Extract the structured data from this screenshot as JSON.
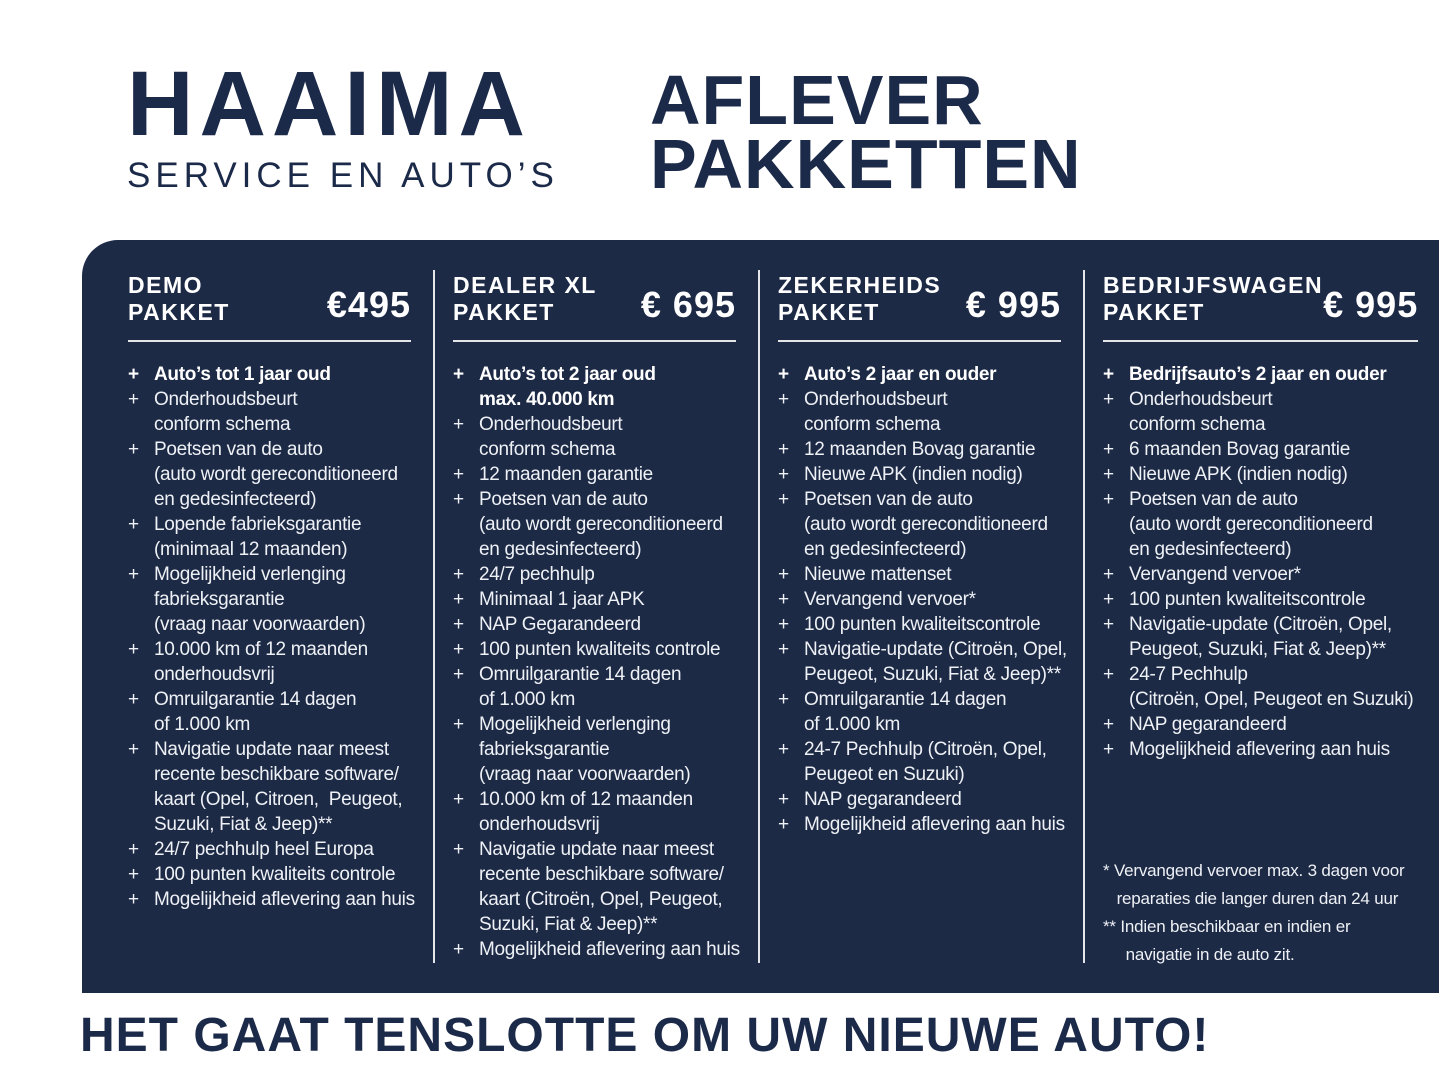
{
  "colors": {
    "panel_navy": "#1d2a46",
    "headline_navy": "#1c2a49",
    "feature_text": "#eef1f5",
    "line_white": "rgba(255,255,255,.88)"
  },
  "brand": {
    "name": "HAAIMA",
    "tagline": "SERVICE EN AUTO’S"
  },
  "title": {
    "line1": "AFLEVER",
    "line2": "PAKKETTEN"
  },
  "packages": [
    {
      "name": "DEMO\nPAKKET",
      "price": "€495",
      "features": [
        {
          "text": "Auto’s tot 1 jaar oud",
          "bold": true
        },
        {
          "text": "Onderhoudsbeurt\nconform schema",
          "bold": false
        },
        {
          "text": "Poetsen van de auto\n(auto wordt gereconditioneerd\nen gedesinfecteerd)",
          "bold": false
        },
        {
          "text": "Lopende fabrieksgarantie\n(minimaal 12 maanden)",
          "bold": false
        },
        {
          "text": "Mogelijkheid verlenging\nfabrieksgarantie\n(vraag naar voorwaarden)",
          "bold": false
        },
        {
          "text": "10.000 km of 12 maanden\nonderhoudsvrij",
          "bold": false
        },
        {
          "text": "Omruilgarantie 14 dagen\nof 1.000 km",
          "bold": false
        },
        {
          "text": "Navigatie update naar meest\nrecente beschikbare software/\nkaart (Opel, Citroen,  Peugeot,\nSuzuki, Fiat & Jeep)**",
          "bold": false
        },
        {
          "text": "24/7 pechhulp heel Europa",
          "bold": false
        },
        {
          "text": "100 punten kwaliteits controle",
          "bold": false
        },
        {
          "text": "Mogelijkheid aflevering aan huis",
          "bold": false
        }
      ]
    },
    {
      "name": "DEALER XL\nPAKKET",
      "price": "€ 695",
      "features": [
        {
          "text": "Auto’s tot 2 jaar oud\nmax. 40.000 km",
          "bold": true
        },
        {
          "text": "Onderhoudsbeurt\nconform schema",
          "bold": false
        },
        {
          "text": "12 maanden garantie",
          "bold": false
        },
        {
          "text": "Poetsen van de auto\n(auto wordt gereconditioneerd\nen gedesinfecteerd)",
          "bold": false
        },
        {
          "text": "24/7 pechhulp",
          "bold": false
        },
        {
          "text": "Minimaal 1 jaar APK",
          "bold": false
        },
        {
          "text": "NAP Gegarandeerd",
          "bold": false
        },
        {
          "text": "100 punten kwaliteits controle",
          "bold": false
        },
        {
          "text": "Omruilgarantie 14 dagen\nof 1.000 km",
          "bold": false
        },
        {
          "text": "Mogelijkheid verlenging\nfabrieksgarantie\n(vraag naar voorwaarden)",
          "bold": false
        },
        {
          "text": "10.000 km of 12 maanden\nonderhoudsvrij",
          "bold": false
        },
        {
          "text": "Navigatie update naar meest\nrecente beschikbare software/\nkaart (Citroën, Opel, Peugeot,\nSuzuki, Fiat & Jeep)**",
          "bold": false
        },
        {
          "text": "Mogelijkheid aflevering aan huis",
          "bold": false
        }
      ]
    },
    {
      "name": "ZEKERHEIDS\nPAKKET",
      "price": "€ 995",
      "features": [
        {
          "text": "Auto’s 2 jaar en ouder",
          "bold": true
        },
        {
          "text": "Onderhoudsbeurt\nconform schema",
          "bold": false
        },
        {
          "text": "12 maanden Bovag garantie",
          "bold": false
        },
        {
          "text": "Nieuwe APK (indien nodig)",
          "bold": false
        },
        {
          "text": "Poetsen van de auto\n(auto wordt gereconditioneerd\nen gedesinfecteerd)",
          "bold": false
        },
        {
          "text": "Nieuwe mattenset",
          "bold": false
        },
        {
          "text": "Vervangend vervoer*",
          "bold": false
        },
        {
          "text": "100 punten kwaliteitscontrole",
          "bold": false
        },
        {
          "text": "Navigatie-update (Citroën, Opel,\nPeugeot, Suzuki, Fiat & Jeep)**",
          "bold": false
        },
        {
          "text": "Omruilgarantie 14 dagen\nof 1.000 km",
          "bold": false
        },
        {
          "text": "24-7 Pechhulp (Citroën, Opel,\nPeugeot en Suzuki)",
          "bold": false
        },
        {
          "text": "NAP gegarandeerd",
          "bold": false
        },
        {
          "text": "Mogelijkheid aflevering aan huis",
          "bold": false
        }
      ]
    },
    {
      "name": "BEDRIJFSWAGEN\nPAKKET",
      "price": "€ 995",
      "features": [
        {
          "text": "Bedrijfsauto’s 2 jaar en ouder",
          "bold": true
        },
        {
          "text": "Onderhoudsbeurt\nconform schema",
          "bold": false
        },
        {
          "text": "6 maanden Bovag garantie",
          "bold": false
        },
        {
          "text": "Nieuwe APK (indien nodig)",
          "bold": false
        },
        {
          "text": "Poetsen van de auto\n(auto wordt gereconditioneerd\nen gedesinfecteerd)",
          "bold": false
        },
        {
          "text": "Vervangend vervoer*",
          "bold": false
        },
        {
          "text": "100 punten kwaliteitscontrole",
          "bold": false
        },
        {
          "text": "Navigatie-update (Citroën, Opel,\nPeugeot, Suzuki, Fiat & Jeep)**",
          "bold": false
        },
        {
          "text": "24-7 Pechhulp\n(Citroën, Opel, Peugeot en Suzuki)",
          "bold": false
        },
        {
          "text": "NAP gegarandeerd",
          "bold": false
        },
        {
          "text": "Mogelijkheid aflevering aan huis",
          "bold": false
        }
      ],
      "footnotes": [
        "* Vervangend vervoer max. 3 dagen voor\n   reparaties die langer duren dan 24 uur",
        "** Indien beschikbaar en indien er\n     navigatie in de auto zit."
      ]
    }
  ],
  "footer": {
    "text": "HET GAAT TENSLOTTE OM UW NIEUWE AUTO!"
  }
}
